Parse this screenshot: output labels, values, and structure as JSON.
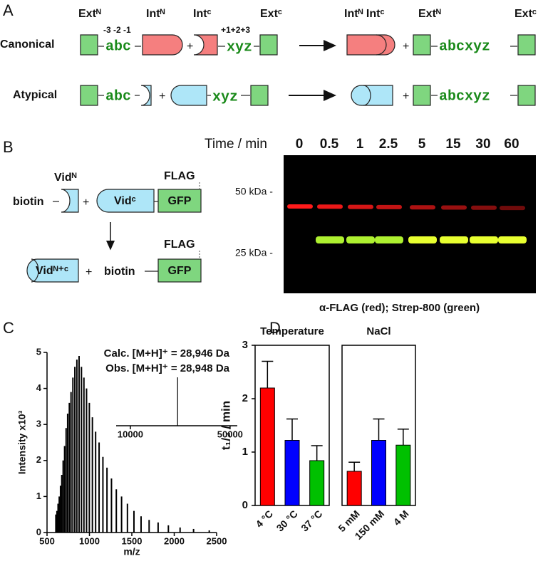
{
  "panel_a": {
    "letter": "A",
    "rows": [
      "Canonical",
      "Atypical"
    ],
    "ext_n": "Extᴺ",
    "int_n": "Intᴺ",
    "int_c": "Intᶜ",
    "ext_c": "Extᶜ",
    "product_int": "Intᴺ Intᶜ",
    "positions_n": "-3 -2 -1",
    "positions_c": "+1+2+3",
    "seq_n": "abc",
    "seq_c": "xyz",
    "seq_product": "abcxyz"
  },
  "panel_b": {
    "letter": "B",
    "vid_n": "Vidᴺ",
    "vid_c": "Vidᶜ",
    "vid_nc": "Vidᴺ⁺ᶜ",
    "flag": "FLAG",
    "biotin": "biotin",
    "gfp": "GFP",
    "time_label": "Time / min",
    "times": [
      "0",
      "0.5",
      "1",
      "2.5",
      "5",
      "15",
      "30",
      "60"
    ],
    "marker_50": "50 kDa -",
    "marker_25": "25 kDa -",
    "caption": "α-FLAG (red); Strep-800 (green)"
  },
  "panel_c": {
    "letter": "C"
  },
  "panel_d": {
    "letter": "D"
  },
  "chart_data": [
    {
      "type": "stem",
      "x_label": "m/z",
      "y_label": "Intensity x10³",
      "annotations": [
        "Calc. [M+H]⁺ = 28,946 Da",
        "Obs. [M+H]⁺ = 28,948 Da"
      ],
      "x": [
        604,
        617,
        630,
        644,
        659,
        674,
        690,
        707,
        725,
        743,
        763,
        783,
        805,
        828,
        852,
        878,
        906,
        935,
        966,
        999,
        1035,
        1073,
        1114,
        1159,
        1207,
        1260,
        1317,
        1379,
        1448,
        1525,
        1609,
        1704,
        1810,
        1931,
        2069,
        2228,
        2413
      ],
      "values": [
        0.5,
        0.6,
        0.8,
        1.0,
        1.3,
        1.6,
        2.0,
        2.4,
        2.9,
        3.3,
        3.6,
        3.9,
        4.3,
        4.6,
        4.8,
        4.9,
        4.6,
        4.3,
        4.0,
        3.6,
        3.2,
        2.8,
        2.5,
        2.1,
        1.8,
        1.5,
        1.2,
        1.0,
        0.8,
        0.6,
        0.45,
        0.35,
        0.28,
        0.2,
        0.14,
        0.1,
        0.06
      ],
      "color": "#000000",
      "xlim": [
        500,
        2500
      ],
      "xticks": [
        500,
        1000,
        1500,
        2000,
        2500
      ],
      "ylim": [
        0,
        5
      ],
      "yticks": [
        0,
        1,
        2,
        3,
        4,
        5
      ]
    },
    {
      "type": "stem",
      "x": [
        28948
      ],
      "values": [
        100
      ],
      "color": "#000000",
      "xlim": [
        4300,
        52900
      ],
      "xticks": [
        10000,
        50000
      ],
      "ylim": [
        0,
        100
      ]
    },
    {
      "type": "bar",
      "title": "Temperature",
      "y_label": "t₁/₂ / min",
      "categories": [
        "4 °C",
        "30 °C",
        "37 °C"
      ],
      "values": [
        2.2,
        1.22,
        0.84
      ],
      "errors": [
        0.5,
        0.4,
        0.28
      ],
      "colors": [
        "#ff0000",
        "#0000ff",
        "#00c000"
      ],
      "ylim": [
        0,
        3
      ],
      "yticks": [
        0,
        1,
        2,
        3
      ]
    },
    {
      "type": "bar",
      "title": "NaCl",
      "categories": [
        "5 mM",
        "150 mM",
        "4 M"
      ],
      "values": [
        0.64,
        1.22,
        1.13
      ],
      "errors": [
        0.17,
        0.4,
        0.3
      ],
      "colors": [
        "#ff0000",
        "#0000ff",
        "#00c000"
      ],
      "ylim": [
        0,
        3
      ]
    }
  ]
}
